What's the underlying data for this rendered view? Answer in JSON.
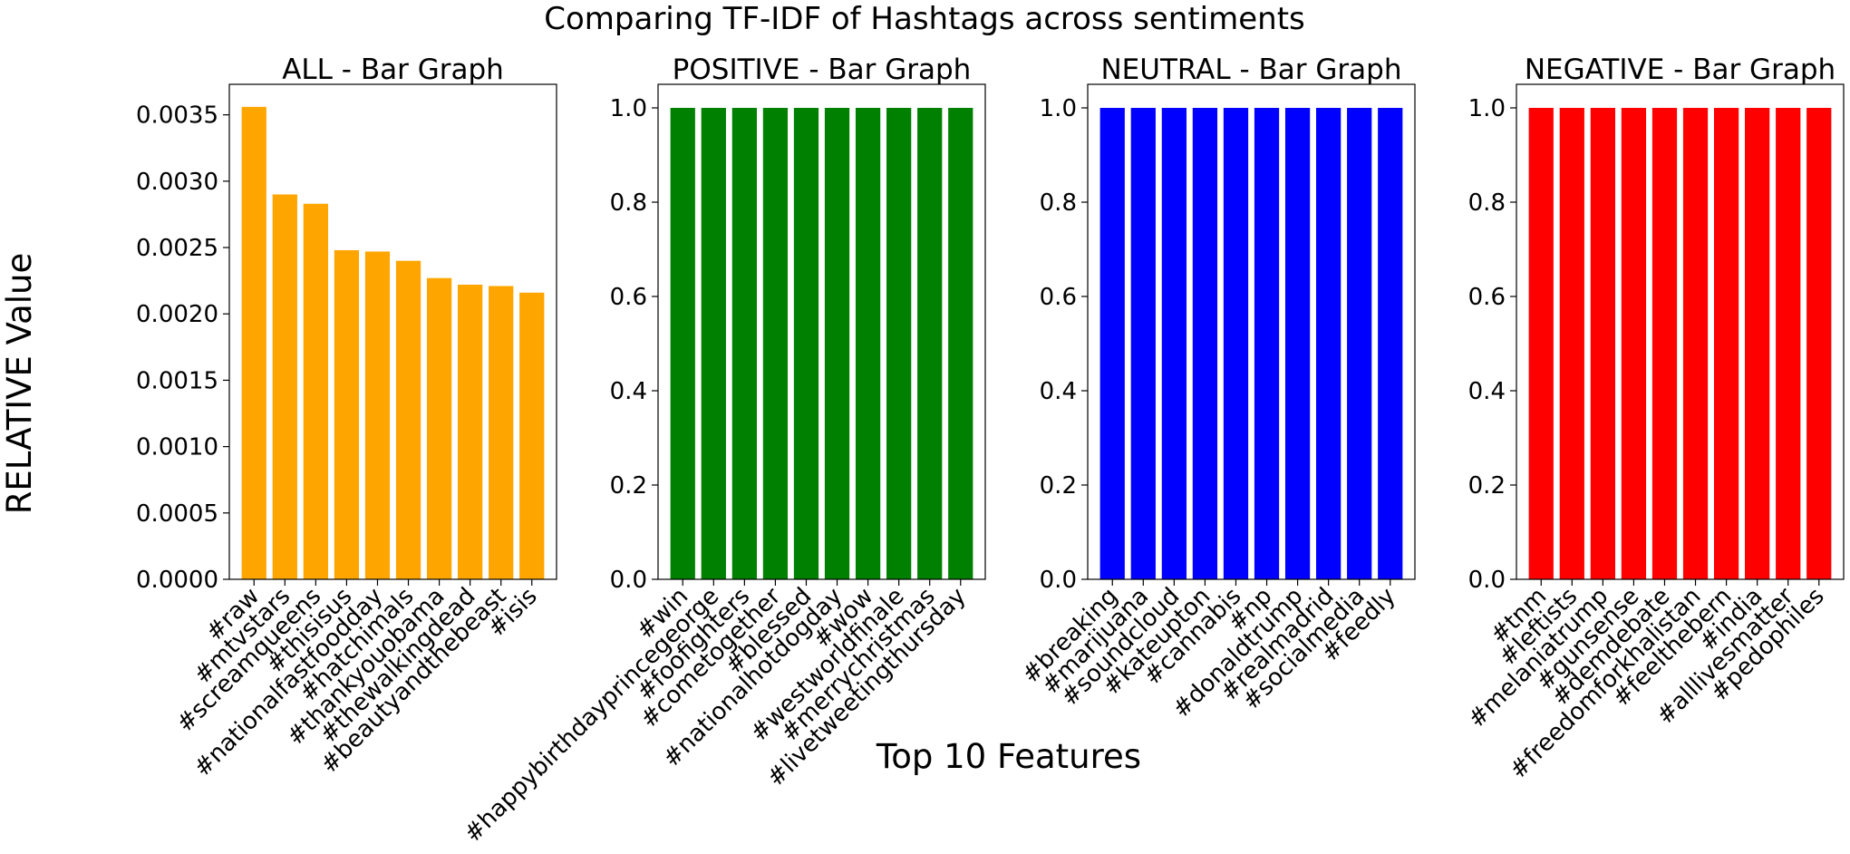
{
  "figure": {
    "suptitle": "Comparing TF-IDF of Hashtags across sentiments",
    "xlabel": "Top 10 Features",
    "ylabel": "RELATIVE Value"
  },
  "chart_data": [
    {
      "type": "bar",
      "title": "ALL - Bar Graph",
      "color": "#ffa500",
      "categories": [
        "#raw",
        "#mtvstars",
        "#screamqueens",
        "#thisisus",
        "#nationalfastfoodday",
        "#hatchimals",
        "#thankyouobama",
        "#thewalkingdead",
        "#beautyandthebeast",
        "#isis"
      ],
      "values": [
        0.00356,
        0.0029,
        0.00283,
        0.00248,
        0.00247,
        0.0024,
        0.00227,
        0.00222,
        0.00221,
        0.00216
      ],
      "ylim": [
        0,
        0.00373
      ],
      "yticks": [
        0,
        0.0005,
        0.001,
        0.0015,
        0.002,
        0.0025,
        0.003,
        0.0035
      ],
      "ytick_labels": [
        "0.0000",
        "0.0005",
        "0.0010",
        "0.0015",
        "0.0020",
        "0.0025",
        "0.0030",
        "0.0035"
      ],
      "grid": false
    },
    {
      "type": "bar",
      "title": "POSITIVE - Bar Graph",
      "color": "#008000",
      "categories": [
        "#win",
        "#happybirthdayprincegeorge",
        "#foofighters",
        "#cometogether",
        "#blessed",
        "#nationalhotdogday",
        "#wow",
        "#westworldfinale",
        "#merrychristmas",
        "#livetweetingthursday"
      ],
      "values": [
        1,
        1,
        1,
        1,
        1,
        1,
        1,
        1,
        1,
        1
      ],
      "ylim": [
        0,
        1.05
      ],
      "yticks": [
        0,
        0.2,
        0.4,
        0.6,
        0.8,
        1.0
      ],
      "ytick_labels": [
        "0.0",
        "0.2",
        "0.4",
        "0.6",
        "0.8",
        "1.0"
      ],
      "grid": false
    },
    {
      "type": "bar",
      "title": "NEUTRAL - Bar Graph",
      "color": "#0000ff",
      "categories": [
        "#breaking",
        "#marijuana",
        "#soundcloud",
        "#kateupton",
        "#cannabis",
        "#np",
        "#donaldtrump",
        "#realmadrid",
        "#socialmedia",
        "#feedly"
      ],
      "values": [
        1,
        1,
        1,
        1,
        1,
        1,
        1,
        1,
        1,
        1
      ],
      "ylim": [
        0,
        1.05
      ],
      "yticks": [
        0,
        0.2,
        0.4,
        0.6,
        0.8,
        1.0
      ],
      "ytick_labels": [
        "0.0",
        "0.2",
        "0.4",
        "0.6",
        "0.8",
        "1.0"
      ],
      "grid": false
    },
    {
      "type": "bar",
      "title": "NEGATIVE - Bar Graph",
      "color": "#ff0000",
      "categories": [
        "#tnm",
        "#leftists",
        "#melaniatrump",
        "#gunsense",
        "#demdebate",
        "#freedomforkhalistan",
        "#feelthebern",
        "#india",
        "#alllivesmatter",
        "#pedophiles"
      ],
      "values": [
        1,
        1,
        1,
        1,
        1,
        1,
        1,
        1,
        1,
        1
      ],
      "ylim": [
        0,
        1.05
      ],
      "yticks": [
        0,
        0.2,
        0.4,
        0.6,
        0.8,
        1.0
      ],
      "ytick_labels": [
        "0.0",
        "0.2",
        "0.4",
        "0.6",
        "0.8",
        "1.0"
      ],
      "grid": false
    }
  ]
}
